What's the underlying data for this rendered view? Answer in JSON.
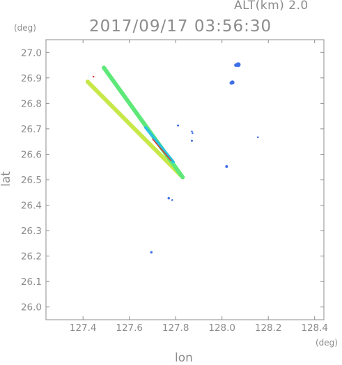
{
  "header": {
    "altitude": "ALT(km) 2.0",
    "datetime": "2017/09/17 03:56:30"
  },
  "chart_data": {
    "type": "scatter",
    "title": "2017/09/17 03:56:30",
    "subtitle": "ALT(km) 2.0",
    "xlabel": "lon",
    "ylabel": "lat",
    "xunit": "(deg)",
    "yunit": "(deg)",
    "xlim": [
      127.24,
      128.44
    ],
    "ylim": [
      25.95,
      27.05
    ],
    "xticks": [
      127.4,
      127.6,
      127.8,
      128.0,
      128.2,
      128.4
    ],
    "yticks": [
      26.0,
      26.1,
      26.2,
      26.3,
      26.4,
      26.5,
      26.6,
      26.7,
      26.8,
      26.9,
      27.0
    ],
    "xtick_labels": [
      "127.4",
      "127.6",
      "127.8",
      "128.0",
      "128.2",
      "128.4"
    ],
    "ytick_labels": [
      "26.0",
      "26.1",
      "26.2",
      "26.3",
      "26.4",
      "26.5",
      "26.6",
      "26.7",
      "26.8",
      "26.9",
      "27.0"
    ],
    "grid": false,
    "colors": {
      "blue": "#3f6fe8",
      "cyan": "#28c3de",
      "green": "#5fe87a",
      "yellow": "#d2e84a",
      "red": "#d83a2a",
      "axis": "#8c8c8c"
    },
    "streaks": [
      {
        "from": [
          127.42,
          26.885
        ],
        "to": [
          127.83,
          26.51
        ],
        "color": "#c8e84a",
        "width": 6
      },
      {
        "from": [
          127.49,
          26.94
        ],
        "to": [
          127.83,
          26.51
        ],
        "color": "#5fe87a",
        "width": 6
      },
      {
        "from": [
          127.67,
          26.705
        ],
        "to": [
          127.79,
          26.57
        ],
        "color": "#28c3de",
        "width": 4
      },
      {
        "from": [
          127.7,
          26.66
        ],
        "to": [
          127.78,
          26.575
        ],
        "color": "#d83a2a",
        "width": 1.5
      }
    ],
    "points": [
      {
        "lon": 128.07,
        "lat": 26.952,
        "size": 6,
        "color": "#3f6fe8"
      },
      {
        "lon": 128.06,
        "lat": 26.95,
        "size": 4,
        "color": "#3f6fe8"
      },
      {
        "lon": 128.045,
        "lat": 26.882,
        "size": 5,
        "color": "#3f6fe8"
      },
      {
        "lon": 128.04,
        "lat": 26.88,
        "size": 4,
        "color": "#3f6fe8"
      },
      {
        "lon": 127.81,
        "lat": 26.713,
        "size": 2,
        "color": "#3f6fe8"
      },
      {
        "lon": 127.87,
        "lat": 26.69,
        "size": 1.5,
        "color": "#3f6fe8"
      },
      {
        "lon": 127.873,
        "lat": 26.683,
        "size": 1.5,
        "color": "#3f6fe8"
      },
      {
        "lon": 127.87,
        "lat": 26.653,
        "size": 2,
        "color": "#3f6fe8"
      },
      {
        "lon": 128.155,
        "lat": 26.667,
        "size": 1.5,
        "color": "#3f6fe8"
      },
      {
        "lon": 128.02,
        "lat": 26.552,
        "size": 3,
        "color": "#3f6fe8"
      },
      {
        "lon": 127.77,
        "lat": 26.427,
        "size": 2.5,
        "color": "#3f6fe8"
      },
      {
        "lon": 127.785,
        "lat": 26.42,
        "size": 1.5,
        "color": "#3f6fe8"
      },
      {
        "lon": 127.695,
        "lat": 26.215,
        "size": 2.5,
        "color": "#3f6fe8"
      },
      {
        "lon": 127.445,
        "lat": 26.905,
        "size": 1.5,
        "color": "#d83a2a"
      }
    ]
  }
}
